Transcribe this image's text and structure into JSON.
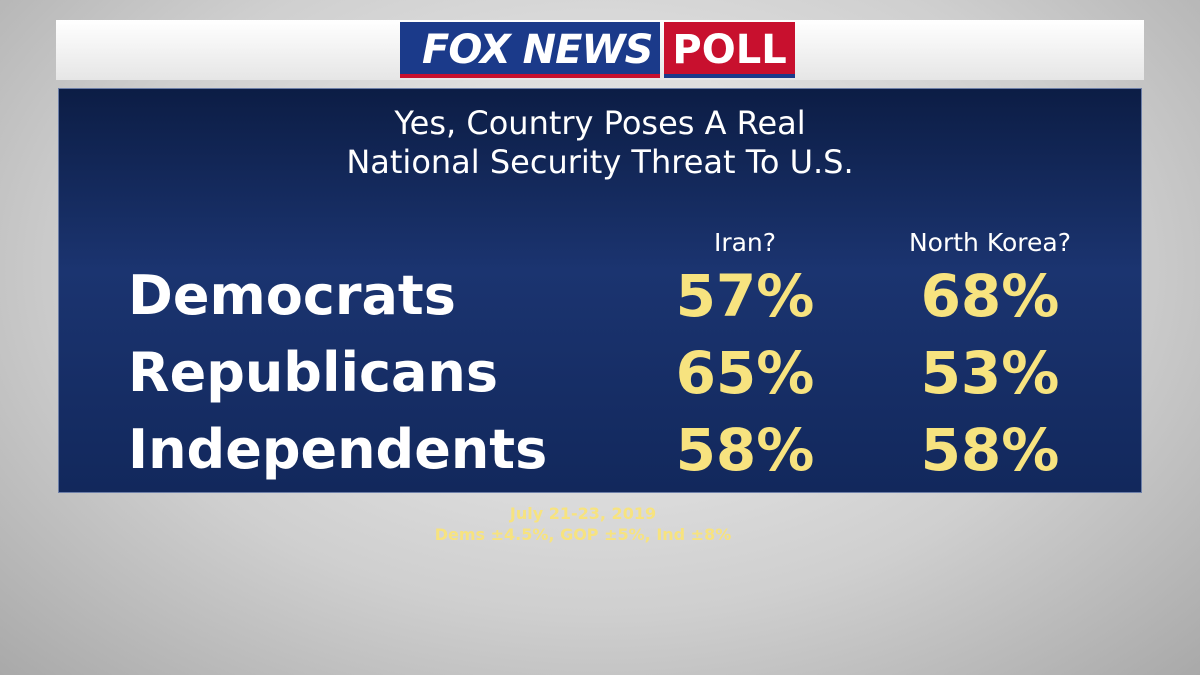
{
  "header": {
    "brand": "FOX NEWS",
    "badge": "POLL"
  },
  "title": [
    "Yes, Country Poses A Real",
    "National Security Threat To U.S."
  ],
  "table": {
    "columns": [
      "Iran?",
      "North Korea?"
    ],
    "rows": [
      [
        "Democrats",
        "57%",
        "68%"
      ],
      [
        "Republicans",
        "65%",
        "53%"
      ],
      [
        "Independents",
        "58%",
        "58%"
      ]
    ]
  },
  "footer": {
    "dates": "July 21-23, 2019",
    "margins": "Dems ±4.5%, GOP ±5%, Ind ±8%"
  }
}
